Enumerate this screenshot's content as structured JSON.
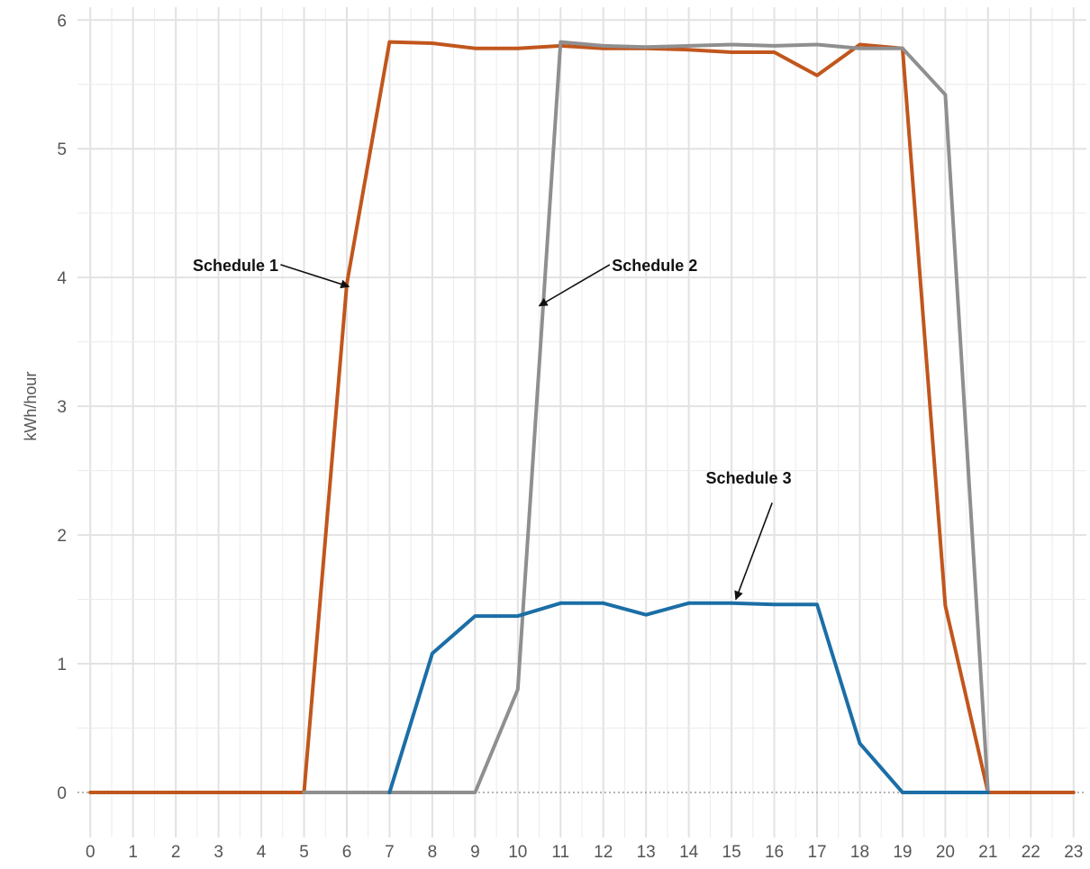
{
  "chart_data": {
    "type": "line",
    "title": "",
    "xlabel": "",
    "ylabel": "kWh/hour",
    "x": [
      0,
      1,
      2,
      3,
      4,
      5,
      6,
      7,
      8,
      9,
      10,
      11,
      12,
      13,
      14,
      15,
      16,
      17,
      18,
      19,
      20,
      21,
      22,
      23
    ],
    "xlim": [
      -0.3,
      23.3
    ],
    "ylim": [
      -0.35,
      6.1
    ],
    "x_ticks": [
      "0",
      "1",
      "2",
      "3",
      "4",
      "5",
      "6",
      "7",
      "8",
      "9",
      "10",
      "11",
      "12",
      "13",
      "14",
      "15",
      "16",
      "17",
      "18",
      "19",
      "20",
      "21",
      "22",
      "23"
    ],
    "y_ticks": [
      "0",
      "1",
      "2",
      "3",
      "4",
      "5",
      "6"
    ],
    "grid": true,
    "zero_line": "dotted",
    "legend": "none",
    "series": [
      {
        "color": "#c1561d",
        "points": [
          [
            0,
            0
          ],
          [
            1,
            0
          ],
          [
            2,
            0
          ],
          [
            3,
            0
          ],
          [
            4,
            0
          ],
          [
            5,
            0
          ],
          [
            6,
            3.95
          ],
          [
            7,
            5.83
          ],
          [
            8,
            5.82
          ],
          [
            9,
            5.78
          ],
          [
            10,
            5.78
          ],
          [
            11,
            5.8
          ],
          [
            12,
            5.78
          ],
          [
            13,
            5.78
          ],
          [
            14,
            5.77
          ],
          [
            15,
            5.75
          ],
          [
            16,
            5.75
          ],
          [
            17,
            5.57
          ],
          [
            18,
            5.81
          ],
          [
            19,
            5.78
          ],
          [
            20,
            1.45
          ],
          [
            21,
            0
          ],
          [
            22,
            0
          ],
          [
            23,
            0
          ]
        ]
      },
      {
        "color": "#8f8f8f",
        "points": [
          [
            5,
            0
          ],
          [
            6,
            0
          ],
          [
            7,
            0
          ],
          [
            8,
            0
          ],
          [
            9,
            0
          ],
          [
            10,
            0.8
          ],
          [
            11,
            5.83
          ],
          [
            12,
            5.8
          ],
          [
            13,
            5.79
          ],
          [
            14,
            5.8
          ],
          [
            15,
            5.81
          ],
          [
            16,
            5.8
          ],
          [
            17,
            5.81
          ],
          [
            18,
            5.78
          ],
          [
            19,
            5.78
          ],
          [
            20,
            5.42
          ],
          [
            21,
            0
          ]
        ]
      },
      {
        "color": "#1b6ea6",
        "points": [
          [
            7,
            0
          ],
          [
            8,
            1.08
          ],
          [
            9,
            1.37
          ],
          [
            10,
            1.37
          ],
          [
            11,
            1.47
          ],
          [
            12,
            1.47
          ],
          [
            13,
            1.38
          ],
          [
            14,
            1.47
          ],
          [
            15,
            1.47
          ],
          [
            16,
            1.46
          ],
          [
            17,
            1.46
          ],
          [
            18,
            0.38
          ],
          [
            19,
            0
          ],
          [
            20,
            0
          ],
          [
            21,
            0
          ]
        ]
      }
    ],
    "annotations": [
      {
        "text": "Schedule 1",
        "anchor": "end",
        "label_at": [
          4.4,
          4.05
        ],
        "arrow_from": [
          4.45,
          4.1
        ],
        "arrow_to": [
          6.05,
          3.93
        ]
      },
      {
        "text": "Schedule 2",
        "anchor": "start",
        "label_at": [
          12.2,
          4.05
        ],
        "arrow_from": [
          12.15,
          4.1
        ],
        "arrow_to": [
          10.5,
          3.78
        ]
      },
      {
        "text": "Schedule 3",
        "anchor": "middle",
        "label_at": [
          15.4,
          2.4
        ],
        "arrow_from": [
          15.95,
          2.25
        ],
        "arrow_to": [
          15.1,
          1.5
        ]
      }
    ]
  }
}
